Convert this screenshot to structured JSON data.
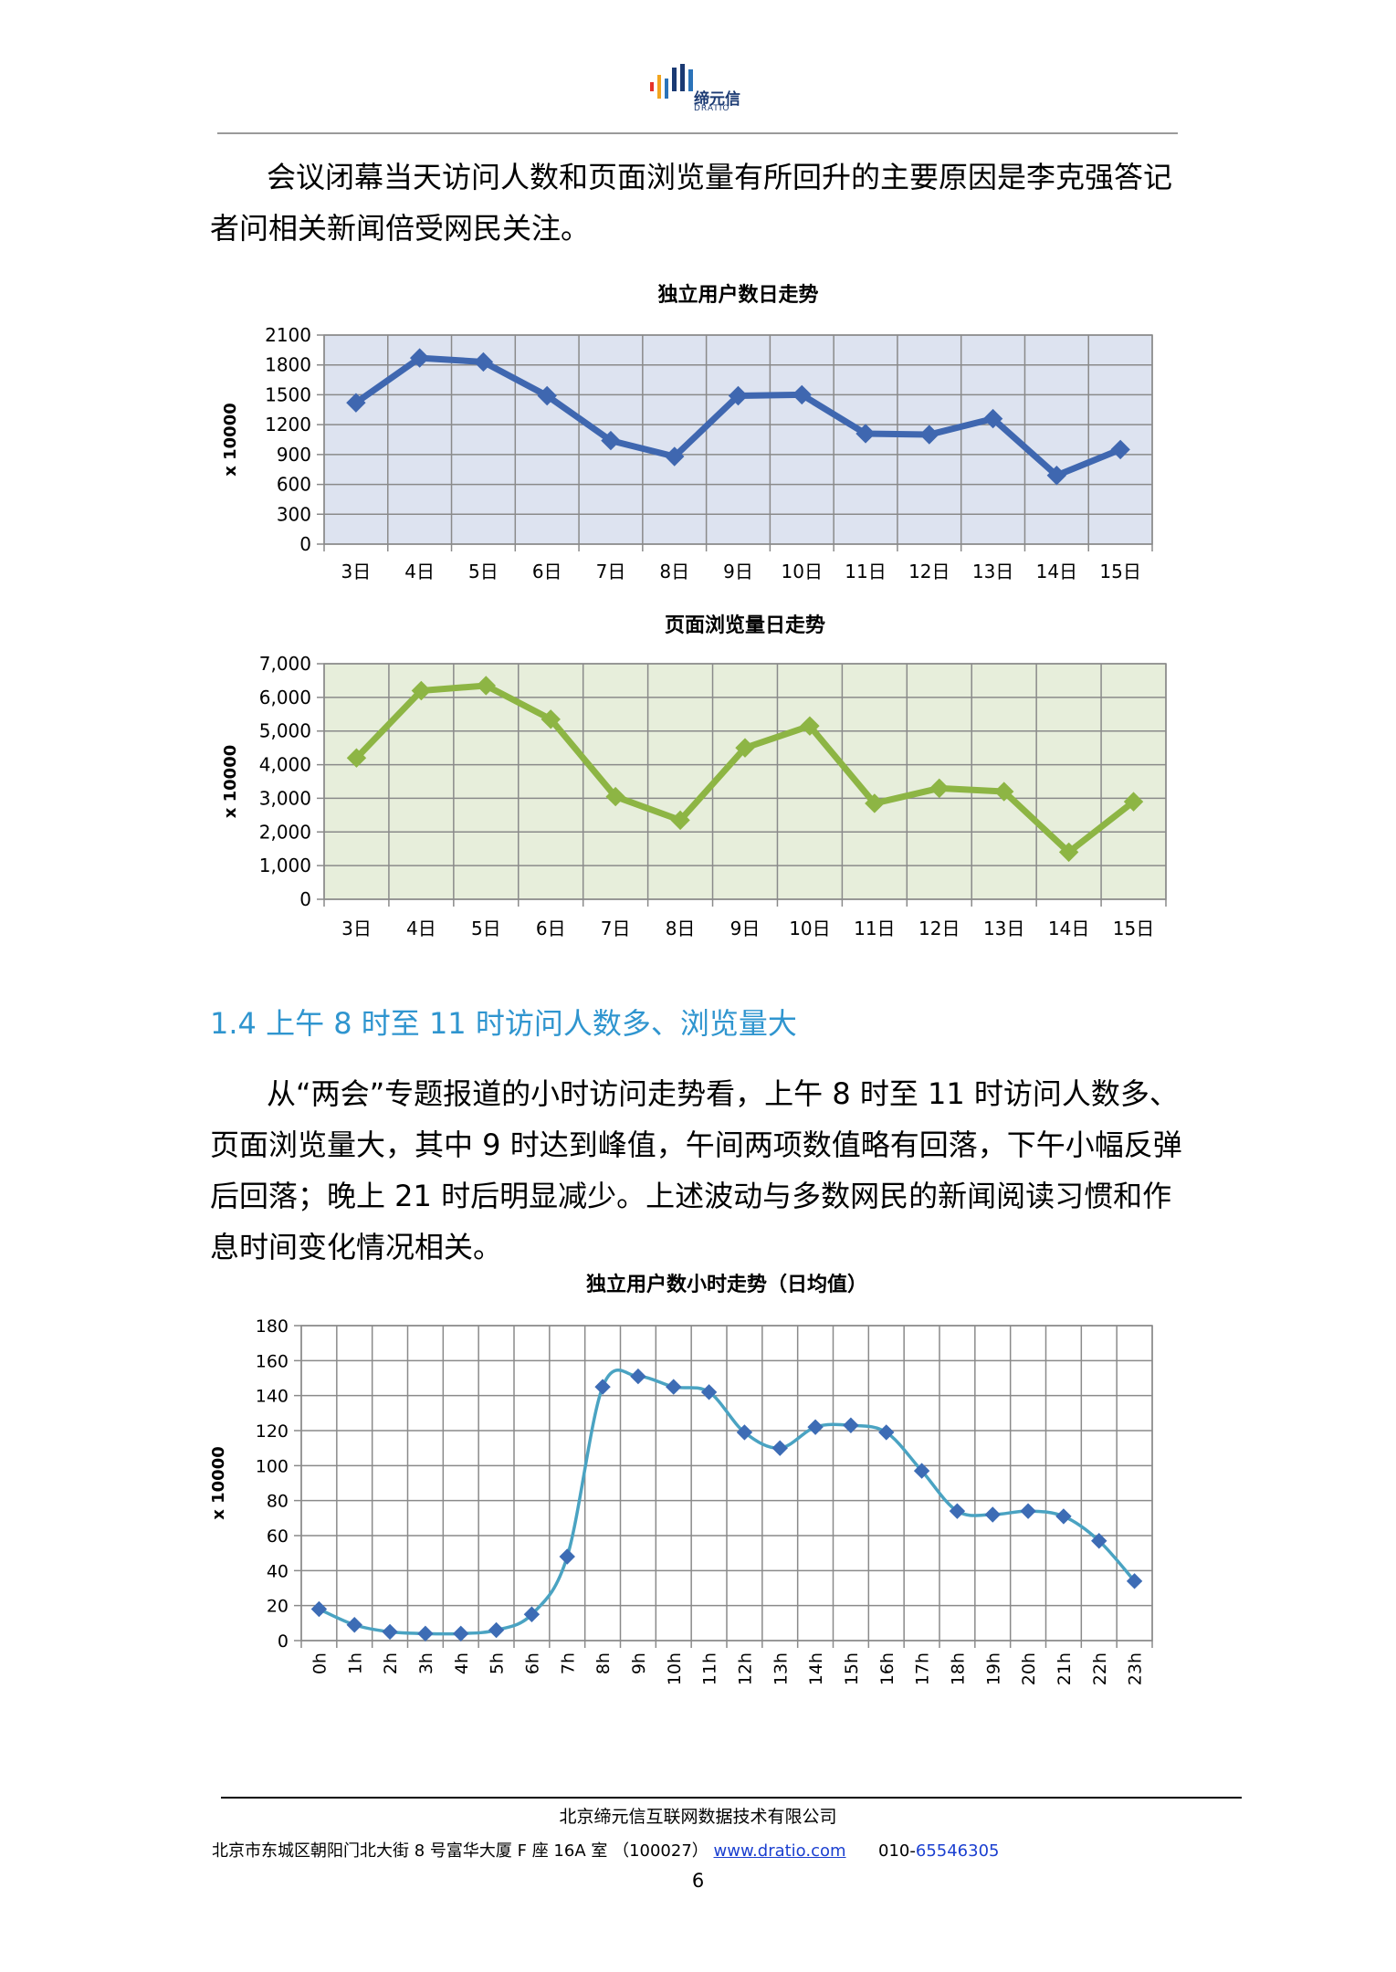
{
  "header": {
    "logo_text": "缔元信",
    "logo_sub": "DRATIO",
    "logo_colors": [
      "#e63329",
      "#f2a51f",
      "#2b73b9",
      "#1b3a73"
    ]
  },
  "body": {
    "paragraph_1": "会议闭幕当天访问人数和页面浏览量有所回升的主要原因是李克强答记者问相关新闻倍受网民关注。",
    "section_heading": "1.4 上午 8 时至 11 时访问人数多、浏览量大",
    "paragraph_2": "从“两会”专题报道的小时访问走势看，上午 8 时至 11 时访问人数多、页面浏览量大，其中 9 时达到峰值，午间两项数值略有回落，下午小幅反弹后回落；晚上 21 时后明显减少。上述波动与多数网民的新闻阅读习惯和作息时间变化情况相关。"
  },
  "chart_data": [
    {
      "type": "line",
      "title": "独立用户数日走势",
      "ylabel": "x 10000",
      "categories": [
        "3日",
        "4日",
        "5日",
        "6日",
        "7日",
        "8日",
        "9日",
        "10日",
        "11日",
        "12日",
        "13日",
        "14日",
        "15日"
      ],
      "series": [
        {
          "values": [
            1420,
            1870,
            1830,
            1490,
            1040,
            880,
            1490,
            1500,
            1110,
            1100,
            1260,
            690,
            950
          ]
        }
      ],
      "ylim": [
        0,
        2100
      ],
      "yticks": [
        "0",
        "300",
        "600",
        "900",
        "1200",
        "1500",
        "1800",
        "2100"
      ],
      "grid": true,
      "colors": {
        "line": "#3f67b0",
        "plot_bg": "#dde3f0"
      }
    },
    {
      "type": "line",
      "title": "页面浏览量日走势",
      "ylabel": "x 10000",
      "categories": [
        "3日",
        "4日",
        "5日",
        "6日",
        "7日",
        "8日",
        "9日",
        "10日",
        "11日",
        "12日",
        "13日",
        "14日",
        "15日"
      ],
      "series": [
        {
          "values": [
            4200,
            6200,
            6350,
            5350,
            3050,
            2350,
            4500,
            5150,
            2850,
            3300,
            3200,
            1400,
            2900
          ]
        }
      ],
      "ylim": [
        0,
        7000
      ],
      "yticks": [
        "0",
        "1,000",
        "2,000",
        "3,000",
        "4,000",
        "5,000",
        "6,000",
        "7,000"
      ],
      "grid": true,
      "colors": {
        "line": "#8db544",
        "plot_bg": "#e7eedb"
      }
    },
    {
      "type": "line",
      "title": "独立用户数小时走势（日均值）",
      "ylabel": "x 10000",
      "categories": [
        "0h",
        "1h",
        "2h",
        "3h",
        "4h",
        "5h",
        "6h",
        "7h",
        "8h",
        "9h",
        "10h",
        "11h",
        "12h",
        "13h",
        "14h",
        "15h",
        "16h",
        "17h",
        "18h",
        "19h",
        "20h",
        "21h",
        "22h",
        "23h"
      ],
      "series": [
        {
          "values": [
            18,
            9,
            5,
            4,
            4,
            6,
            15,
            48,
            145,
            151,
            145,
            142,
            119,
            110,
            122,
            123,
            119,
            97,
            74,
            72,
            74,
            71,
            57,
            34
          ]
        }
      ],
      "ylim": [
        0,
        180
      ],
      "yticks": [
        "0",
        "20",
        "40",
        "60",
        "80",
        "100",
        "120",
        "140",
        "160",
        "180"
      ],
      "grid": true,
      "smooth": true,
      "colors": {
        "line": "#4aa3c2",
        "marker": "#3d6cb5",
        "plot_bg": "#ffffff"
      }
    }
  ],
  "footer": {
    "company": "北京缔元信互联网数据技术有限公司",
    "address": "北京市东城区朝阳门北大街 8 号富华大厦 F 座 16A 室 （100027）",
    "website": "www.dratio.com",
    "phone_prefix": "010-",
    "phone_number": "65546305",
    "page_number": "6"
  }
}
